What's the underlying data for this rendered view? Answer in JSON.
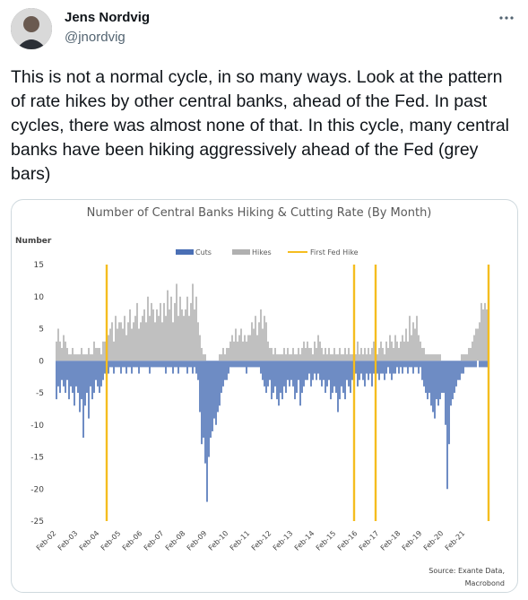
{
  "tweet": {
    "name": "Jens Nordvig",
    "handle": "@jnordvig",
    "text": "This is not a normal cycle, in so many ways. Look at the pattern of rate hikes by other central banks, ahead of the Fed. In past cycles, there was almost none of that. In this cycle, many central banks have been hiking aggressively ahead of the Fed (grey bars)"
  },
  "chart_data": {
    "type": "bar",
    "title": "Number of Central Banks Hiking & Cutting Rate (By Month)",
    "ylabel": "Number",
    "source": [
      "Source: Exante Data,",
      "Macrobond"
    ],
    "ylim": [
      -25,
      15
    ],
    "yticks": [
      -25,
      -20,
      -15,
      -10,
      -5,
      0,
      5,
      10,
      15
    ],
    "categories": [
      "Feb-02",
      null,
      null,
      null,
      null,
      null,
      null,
      null,
      null,
      null,
      null,
      null,
      "Feb-03",
      null,
      null,
      null,
      null,
      null,
      null,
      null,
      null,
      null,
      null,
      null,
      "Feb-04",
      null,
      null,
      null,
      null,
      null,
      null,
      null,
      null,
      null,
      null,
      null,
      "Feb-05",
      null,
      null,
      null,
      null,
      null,
      null,
      null,
      null,
      null,
      null,
      null,
      "Feb-06",
      null,
      null,
      null,
      null,
      null,
      null,
      null,
      null,
      null,
      null,
      null,
      "Feb-07",
      null,
      null,
      null,
      null,
      null,
      null,
      null,
      null,
      null,
      null,
      null,
      "Feb-08",
      null,
      null,
      null,
      null,
      null,
      null,
      null,
      null,
      null,
      null,
      null,
      "Feb-09",
      null,
      null,
      null,
      null,
      null,
      null,
      null,
      null,
      null,
      null,
      null,
      "Feb-10",
      null,
      null,
      null,
      null,
      null,
      null,
      null,
      null,
      null,
      null,
      null,
      "Feb-11",
      null,
      null,
      null,
      null,
      null,
      null,
      null,
      null,
      null,
      null,
      null,
      "Feb-12",
      null,
      null,
      null,
      null,
      null,
      null,
      null,
      null,
      null,
      null,
      null,
      "Feb-13",
      null,
      null,
      null,
      null,
      null,
      null,
      null,
      null,
      null,
      null,
      null,
      "Feb-14",
      null,
      null,
      null,
      null,
      null,
      null,
      null,
      null,
      null,
      null,
      null,
      "Feb-15",
      null,
      null,
      null,
      null,
      null,
      null,
      null,
      null,
      null,
      null,
      null,
      "Feb-16",
      null,
      null,
      null,
      null,
      null,
      null,
      null,
      null,
      null,
      null,
      null,
      "Feb-17",
      null,
      null,
      null,
      null,
      null,
      null,
      null,
      null,
      null,
      null,
      null,
      "Feb-18",
      null,
      null,
      null,
      null,
      null,
      null,
      null,
      null,
      null,
      null,
      null,
      "Feb-19",
      null,
      null,
      null,
      null,
      null,
      null,
      null,
      null,
      null,
      null,
      null,
      "Feb-20",
      null,
      null,
      null,
      null,
      null,
      null,
      null,
      null,
      null,
      null,
      null,
      "Feb-21",
      null,
      null,
      null,
      null,
      null,
      null,
      null,
      null,
      null,
      null,
      null,
      null,
      null
    ],
    "series": [
      {
        "name": "Cuts",
        "color": "#4a6fb5",
        "values": [
          -6,
          -4,
          -5,
          -3,
          -4,
          -5,
          -3,
          -6,
          -4,
          -5,
          -7,
          -4,
          -5,
          -8,
          -6,
          -12,
          -7,
          -5,
          -9,
          -4,
          -6,
          -5,
          -3,
          -4,
          -5,
          -4,
          -3,
          -2,
          -1,
          -2,
          -1,
          -1,
          -2,
          -1,
          -1,
          -1,
          -2,
          -1,
          -1,
          -2,
          -1,
          -1,
          -2,
          -1,
          -1,
          -1,
          -2,
          -1,
          -1,
          -1,
          -1,
          -1,
          -2,
          -1,
          -1,
          -1,
          -1,
          -1,
          -1,
          -1,
          -1,
          -2,
          -1,
          -1,
          -1,
          -2,
          -1,
          -1,
          -2,
          -1,
          -1,
          -1,
          -1,
          -2,
          -1,
          -1,
          -2,
          -1,
          -2,
          -3,
          -8,
          -13,
          -12,
          -16,
          -22,
          -15,
          -12,
          -11,
          -9,
          -10,
          -8,
          -7,
          -5,
          -4,
          -3,
          -3,
          -2,
          -1,
          -1,
          -1,
          -1,
          -1,
          -1,
          -1,
          -1,
          -1,
          -2,
          -1,
          -1,
          -1,
          -1,
          -1,
          -1,
          -1,
          -2,
          -3,
          -4,
          -5,
          -4,
          -3,
          -6,
          -5,
          -4,
          -6,
          -7,
          -5,
          -6,
          -4,
          -5,
          -3,
          -4,
          -3,
          -4,
          -6,
          -5,
          -3,
          -7,
          -5,
          -4,
          -3,
          -3,
          -2,
          -4,
          -3,
          -2,
          -3,
          -2,
          -3,
          -4,
          -3,
          -5,
          -4,
          -3,
          -6,
          -5,
          -4,
          -5,
          -8,
          -6,
          -4,
          -5,
          -6,
          -3,
          -4,
          -5,
          -3,
          -4,
          -2,
          -4,
          -3,
          -2,
          -3,
          -4,
          -2,
          -3,
          -2,
          -4,
          -2,
          -3,
          -2,
          -3,
          -2,
          -2,
          -3,
          -2,
          -1,
          -2,
          -3,
          -2,
          -2,
          -1,
          -2,
          -1,
          -2,
          -1,
          -1,
          -2,
          -1,
          -1,
          -2,
          -1,
          -1,
          -2,
          -1,
          -3,
          -4,
          -5,
          -6,
          -5,
          -7,
          -8,
          -9,
          -6,
          -7,
          -6,
          -5,
          -5,
          -10,
          -20,
          -13,
          -7,
          -6,
          -5,
          -4,
          -3,
          -3,
          -2,
          -2,
          -1,
          -1,
          -1,
          -1,
          -1,
          -1,
          -1,
          0,
          -1,
          -1,
          -1,
          -1,
          -1,
          -1
        ]
      },
      {
        "name": "Hikes",
        "color": "#b0b0b0",
        "values": [
          3,
          5,
          3,
          2,
          4,
          3,
          2,
          1,
          1,
          2,
          1,
          1,
          1,
          1,
          2,
          1,
          1,
          1,
          2,
          1,
          1,
          3,
          2,
          2,
          2,
          1,
          3,
          3,
          2,
          4,
          5,
          6,
          3,
          7,
          5,
          6,
          6,
          5,
          7,
          4,
          6,
          8,
          5,
          6,
          7,
          9,
          5,
          6,
          7,
          8,
          6,
          10,
          7,
          9,
          8,
          6,
          8,
          7,
          9,
          6,
          9,
          7,
          11,
          8,
          10,
          6,
          9,
          12,
          7,
          10,
          8,
          7,
          8,
          10,
          7,
          9,
          12,
          8,
          10,
          6,
          4,
          2,
          1,
          1,
          0,
          0,
          0,
          0,
          0,
          0,
          0,
          1,
          1,
          2,
          1,
          2,
          2,
          3,
          4,
          3,
          5,
          3,
          4,
          5,
          3,
          4,
          3,
          4,
          4,
          6,
          5,
          7,
          4,
          6,
          8,
          5,
          7,
          6,
          3,
          2,
          2,
          1,
          2,
          1,
          1,
          1,
          1,
          2,
          1,
          2,
          1,
          1,
          2,
          1,
          1,
          2,
          1,
          2,
          3,
          2,
          3,
          2,
          2,
          1,
          3,
          2,
          4,
          3,
          2,
          1,
          2,
          1,
          2,
          1,
          1,
          2,
          1,
          1,
          2,
          1,
          1,
          2,
          1,
          2,
          1,
          1,
          2,
          1,
          3,
          1,
          2,
          1,
          2,
          1,
          2,
          1,
          2,
          3,
          2,
          1,
          2,
          3,
          2,
          1,
          3,
          2,
          4,
          3,
          2,
          4,
          3,
          2,
          3,
          4,
          3,
          5,
          3,
          7,
          4,
          6,
          5,
          7,
          4,
          3,
          2,
          2,
          1,
          1,
          1,
          1,
          1,
          1,
          1,
          1,
          1,
          0,
          0,
          0,
          0,
          0,
          0,
          0,
          0,
          0,
          0,
          0,
          1,
          1,
          1,
          1,
          2,
          2,
          3,
          4,
          5,
          5,
          6,
          9,
          8,
          9,
          8,
          7
        ]
      },
      {
        "name": "First Fed Hike",
        "color": "#f5bd1f",
        "values": [
          null,
          null,
          null,
          null,
          null,
          null,
          null,
          null,
          null,
          null,
          null,
          null,
          null,
          null,
          null,
          null,
          null,
          null,
          null,
          null,
          null,
          null,
          null,
          null,
          null,
          null,
          null,
          null,
          15,
          null,
          null,
          null,
          null,
          null,
          null,
          null,
          null,
          null,
          null,
          null,
          null,
          null,
          null,
          null,
          null,
          null,
          null,
          null,
          null,
          null,
          null,
          null,
          null,
          null,
          null,
          null,
          null,
          null,
          null,
          null,
          null,
          null,
          null,
          null,
          null,
          null,
          null,
          null,
          null,
          null,
          null,
          null,
          null,
          null,
          null,
          null,
          null,
          null,
          null,
          null,
          null,
          null,
          null,
          null,
          null,
          null,
          null,
          null,
          null,
          null,
          null,
          null,
          null,
          null,
          null,
          null,
          null,
          null,
          null,
          null,
          null,
          null,
          null,
          null,
          null,
          null,
          null,
          null,
          null,
          null,
          null,
          null,
          null,
          null,
          null,
          null,
          null,
          null,
          null,
          null,
          null,
          null,
          null,
          null,
          null,
          null,
          null,
          null,
          null,
          null,
          null,
          null,
          null,
          null,
          null,
          null,
          null,
          null,
          null,
          null,
          null,
          null,
          null,
          null,
          null,
          null,
          null,
          null,
          null,
          null,
          null,
          null,
          null,
          null,
          null,
          null,
          null,
          null,
          null,
          null,
          null,
          null,
          null,
          null,
          null,
          null,
          15,
          null,
          null,
          null,
          null,
          null,
          null,
          null,
          null,
          null,
          null,
          null,
          15,
          null,
          null,
          null,
          null,
          null,
          null,
          null,
          null,
          null,
          null,
          null,
          null,
          null,
          null,
          null,
          null,
          null,
          null,
          null,
          null,
          null,
          null,
          null,
          null,
          null,
          null,
          null,
          null,
          null,
          null,
          null,
          null,
          null,
          null,
          null,
          null,
          null,
          null,
          null,
          null,
          null,
          null,
          null,
          null,
          null,
          null,
          null,
          null,
          null,
          null,
          null,
          null,
          null,
          null,
          null,
          null,
          null,
          null,
          null,
          null,
          null,
          null,
          15
        ]
      }
    ]
  }
}
